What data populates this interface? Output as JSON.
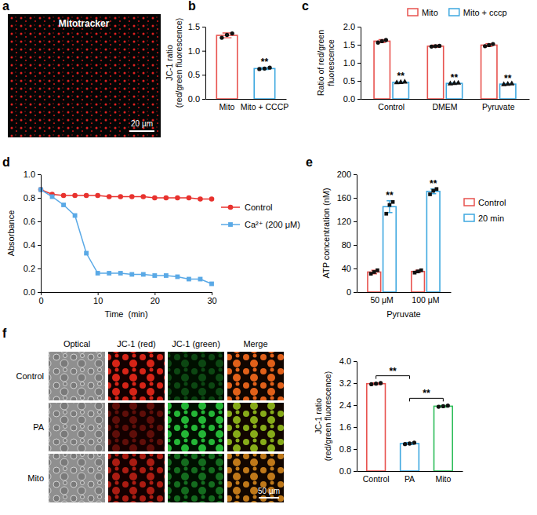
{
  "chart_data": [
    {
      "panel_label": "b",
      "type": "bar",
      "ylabel": [
        "JC-1 ratio",
        "(red/green fluorescence)"
      ],
      "categories": [
        "Mito",
        "Mito + CCCP"
      ],
      "values": [
        1.32,
        0.63
      ],
      "errors": [
        0.05,
        0.02
      ],
      "points": [
        [
          1.27,
          1.33,
          1.36
        ],
        [
          0.62,
          0.63,
          0.65
        ]
      ],
      "colors": [
        "#e8534f",
        "#3ea8e0"
      ],
      "significance": [
        null,
        "**"
      ],
      "marker": "circle",
      "ylim": [
        0,
        1.5
      ],
      "yticks": [
        {
          "value": 0,
          "label": "0.0"
        },
        0.5,
        {
          "value": 1,
          "label": "1.0"
        },
        1.5
      ]
    },
    {
      "panel_label": "c",
      "type": "bar",
      "ylabel": [
        "Ratio of red/green",
        "fluorescence"
      ],
      "categories": [
        "Control",
        "DMEM",
        "Pyruvate"
      ],
      "series": [
        {
          "name": "Mito",
          "color": "#e8534f",
          "marker": "circle",
          "values": [
            1.6,
            1.46,
            1.49
          ],
          "errors": [
            0.04,
            0.03,
            0.04
          ],
          "points": [
            [
              1.56,
              1.6,
              1.63
            ],
            [
              1.45,
              1.46,
              1.47
            ],
            [
              1.46,
              1.49,
              1.52
            ]
          ]
        },
        {
          "name": "Mito + cccp",
          "color": "#3ea8e0",
          "marker": "triangle",
          "values": [
            0.46,
            0.43,
            0.41
          ],
          "errors": [
            0.01,
            0.01,
            0.01
          ],
          "points": [
            [
              0.45,
              0.46,
              0.47
            ],
            [
              0.42,
              0.43,
              0.44
            ],
            [
              0.4,
              0.41,
              0.42
            ]
          ],
          "significance": [
            "**",
            "**",
            "**"
          ]
        }
      ],
      "legend": "top",
      "ylim": [
        0,
        2
      ],
      "yticks": [
        {
          "value": 0,
          "label": "0.0"
        },
        0.5,
        {
          "value": 1,
          "label": "1.0"
        },
        1.5,
        {
          "value": 2,
          "label": "2.0"
        }
      ]
    },
    {
      "panel_label": "d",
      "type": "line",
      "xlabel": "Time  (min)",
      "ylabel": "Absorbance",
      "x": [
        0,
        2,
        4,
        6,
        8,
        10,
        12,
        14,
        16,
        18,
        20,
        22,
        24,
        26,
        28,
        30
      ],
      "series": [
        {
          "name": "Control",
          "color": "#e8322e",
          "marker": "circle",
          "values": [
            0.87,
            0.83,
            0.82,
            0.82,
            0.82,
            0.82,
            0.81,
            0.81,
            0.81,
            0.81,
            0.8,
            0.8,
            0.8,
            0.8,
            0.79,
            0.79
          ]
        },
        {
          "name": "Ca²⁺ (200 μM)",
          "color": "#5aa9e6",
          "marker": "square",
          "values": [
            0.87,
            0.81,
            0.74,
            0.65,
            0.33,
            0.16,
            0.16,
            0.16,
            0.15,
            0.15,
            0.14,
            0.14,
            0.13,
            0.11,
            0.11,
            0.07
          ]
        }
      ],
      "legend": "right",
      "xlim": [
        0,
        30
      ],
      "xticks": [
        0,
        10,
        20,
        30
      ],
      "ylim": [
        0,
        1
      ],
      "yticks": [
        {
          "value": 0,
          "label": "0.0"
        },
        0.2,
        0.4,
        0.6,
        0.8,
        {
          "value": 1,
          "label": "1.0"
        }
      ]
    },
    {
      "panel_label": "e",
      "type": "bar",
      "xlabel": "Pyruvate",
      "ylabel": "ATP concentration (nM)",
      "categories": [
        "50 μM",
        "100 μM"
      ],
      "series": [
        {
          "name": "Control",
          "color": "#e8534f",
          "marker": "square",
          "values": [
            34,
            35
          ],
          "errors": [
            3,
            2
          ],
          "points": [
            [
              31,
              34,
              37
            ],
            [
              33,
              35,
              37
            ]
          ]
        },
        {
          "name": "20 min",
          "color": "#3ea8e0",
          "marker": "square",
          "values": [
            145,
            171
          ],
          "errors": [
            10,
            4
          ],
          "points": [
            [
              133,
              148,
              153
            ],
            [
              166,
              172,
              175
            ]
          ],
          "significance": [
            "**",
            "**"
          ]
        }
      ],
      "legend": "right",
      "ylim": [
        0,
        200
      ],
      "yticks": [
        0,
        40,
        80,
        120,
        160,
        200
      ]
    },
    {
      "type": "bar",
      "ylabel": [
        "JC-1 ratio",
        "(red/green fluorescence)"
      ],
      "categories": [
        "Control",
        "PA",
        "Mito"
      ],
      "values": [
        3.18,
        1.0,
        2.36
      ],
      "errors": [
        0.03,
        0.04,
        0.03
      ],
      "points": [
        [
          3.16,
          3.18,
          3.2
        ],
        [
          0.98,
          1.0,
          1.03
        ],
        [
          2.34,
          2.36,
          2.38
        ]
      ],
      "colors": [
        "#e8534f",
        "#3ea8e0",
        "#2ebd59"
      ],
      "marker": "circle",
      "comparisons": [
        {
          "pair": [
            0,
            1
          ],
          "text": "**"
        },
        {
          "pair": [
            1,
            2
          ],
          "text": "**"
        }
      ],
      "ylim": [
        0,
        4
      ],
      "yticks": [
        {
          "value": 0,
          "label": "0.0"
        },
        0.8,
        1.6,
        2.4,
        3.2,
        {
          "value": 4,
          "label": "4.0"
        }
      ]
    }
  ],
  "images": [
    {
      "panel_label": "a",
      "title": "Mitotracker",
      "scale": "20 µm"
    },
    {
      "panel_label": "f",
      "columns": [
        "Optical",
        "JC-1 (red)",
        "JC-1 (green)",
        "Merge"
      ],
      "rows": [
        "Control",
        "PA",
        "Mito"
      ],
      "scale": "50 µm"
    }
  ]
}
